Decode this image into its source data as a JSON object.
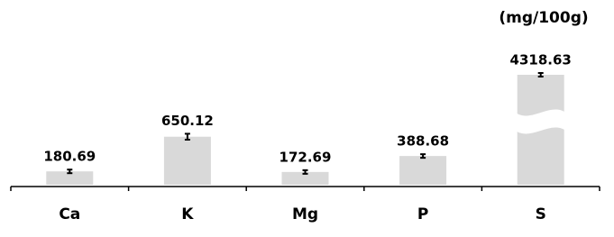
{
  "chart_data": {
    "type": "bar",
    "annotation": "(mg/100g)",
    "categories": [
      "Ca",
      "K",
      "Mg",
      "P",
      "S"
    ],
    "values": [
      180.69,
      650.12,
      172.69,
      388.68,
      4318.63
    ],
    "value_labels": [
      "180.69",
      "650.12",
      "172.69",
      "388.68",
      "4318.63"
    ],
    "errors": [
      10,
      40,
      10,
      10,
      20
    ],
    "color": "#d9d9d9",
    "error_color": "#000000"
  }
}
